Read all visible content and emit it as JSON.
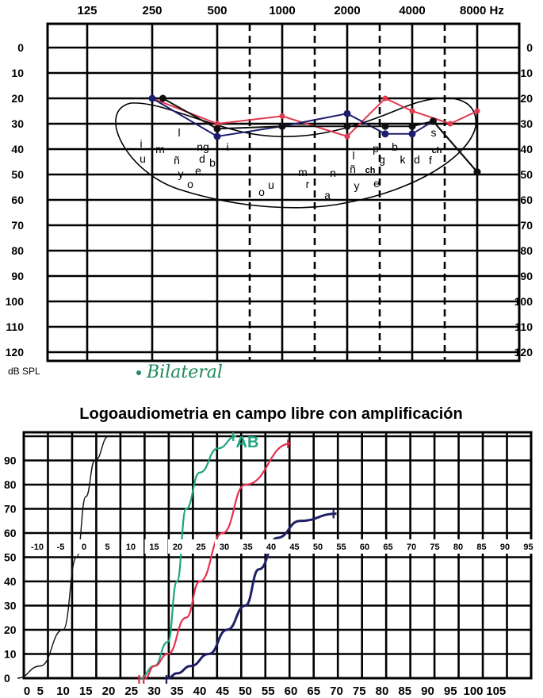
{
  "chart_data": [
    {
      "type": "line",
      "chart": "audiogram",
      "freq_labels": [
        "125",
        "250",
        "500",
        "1000",
        "2000",
        "4000",
        "8000 Hz"
      ],
      "db_ticks": [
        "0",
        "10",
        "20",
        "30",
        "40",
        "50",
        "60",
        "70",
        "80",
        "90",
        "100",
        "110",
        "120"
      ],
      "unit_label": "dB SPL",
      "annotation": "Bilateral",
      "ylim": [
        0,
        120
      ],
      "series": [
        {
          "color": "#e0394f",
          "x": [
            250,
            500,
            1000,
            2000,
            3000,
            4000,
            6000,
            8000
          ],
          "y": [
            20,
            30,
            27,
            35,
            20,
            25,
            30,
            25
          ]
        },
        {
          "color": "#1d1d6e",
          "x": [
            250,
            500,
            1000,
            2000,
            3000,
            4000,
            5000,
            8000
          ],
          "y": [
            20,
            35,
            31,
            26,
            34,
            34,
            29,
            49
          ]
        },
        {
          "color": "#0f0f0f",
          "x": [
            280,
            500,
            1000,
            2000,
            3000,
            4000,
            5000,
            8000
          ],
          "y": [
            20,
            32,
            31,
            31,
            31,
            31,
            29,
            49
          ]
        }
      ],
      "phonemes": [
        "i",
        "u",
        "m",
        "l",
        "ñ",
        "y",
        "o",
        "ng",
        "d",
        "e",
        "b",
        "i",
        "o",
        "u",
        "m",
        "r",
        "n",
        "a",
        "l",
        "ñ",
        "y",
        "p",
        "g",
        "ch",
        "e",
        "b",
        "k",
        "d",
        "s",
        "ch",
        "f"
      ]
    },
    {
      "type": "line",
      "title": "Logoaudiometria en campo libre con amplificación",
      "x_ticks": [
        "0",
        "5",
        "10",
        "15",
        "20",
        "25",
        "30",
        "35",
        "40",
        "45",
        "50",
        "55",
        "60",
        "65",
        "70",
        "75",
        "80",
        "85",
        "90",
        "95",
        "100",
        "105"
      ],
      "y_ticks": [
        "90",
        "80",
        "70",
        "60",
        "50",
        "40",
        "30",
        "20",
        "10",
        "0"
      ],
      "hl_ticks": [
        "-10",
        "-5",
        "0",
        "5",
        "10",
        "15",
        "20",
        "25",
        "30",
        "35",
        "40",
        "45",
        "50",
        "55",
        "60",
        "65",
        "70",
        "75",
        "80",
        "85",
        "90",
        "95"
      ],
      "xlim": [
        0,
        105
      ],
      "ylim": [
        0,
        100
      ],
      "marker_label": "AB",
      "series": [
        {
          "color": "#111111",
          "x": [
            0,
            5,
            10,
            13,
            15,
            17,
            20
          ],
          "y": [
            0,
            5,
            20,
            50,
            75,
            90,
            100
          ]
        },
        {
          "color": "#1fa57f",
          "x": [
            27,
            30,
            33,
            35,
            37,
            40,
            44,
            48
          ],
          "y": [
            0,
            5,
            15,
            40,
            70,
            85,
            95,
            100
          ]
        },
        {
          "color": "#e3314e",
          "x": [
            28,
            30,
            33,
            37,
            40,
            45,
            50,
            60
          ],
          "y": [
            0,
            5,
            10,
            25,
            40,
            60,
            80,
            97
          ]
        },
        {
          "color": "#1f1f66",
          "x": [
            33,
            35,
            38,
            42,
            46,
            50,
            53,
            57,
            62,
            70
          ],
          "y": [
            0,
            2,
            5,
            10,
            20,
            30,
            45,
            58,
            65,
            68
          ]
        }
      ]
    }
  ]
}
